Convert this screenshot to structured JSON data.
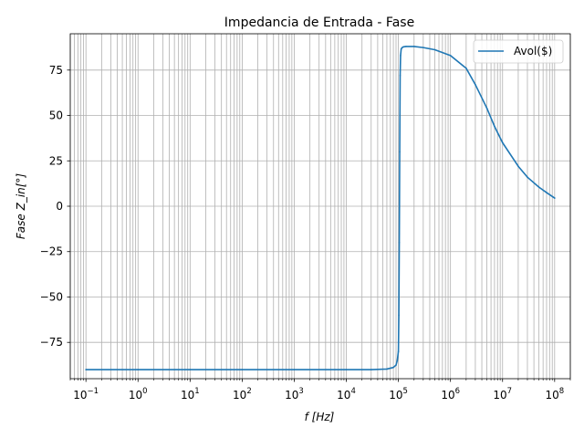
{
  "chart_data": {
    "type": "line",
    "title": "Impedancia de Entrada - Fase",
    "xlabel": "f   [Hz]",
    "ylabel": "Fase   Z_in[°]",
    "xscale": "log",
    "xlim": [
      0.05,
      200000000
    ],
    "ylim": [
      -95,
      95
    ],
    "xticks": [
      {
        "value": 0.1,
        "base": "10",
        "exp": "−1"
      },
      {
        "value": 1,
        "base": "10",
        "exp": "0"
      },
      {
        "value": 10,
        "base": "10",
        "exp": "1"
      },
      {
        "value": 100,
        "base": "10",
        "exp": "2"
      },
      {
        "value": 1000,
        "base": "10",
        "exp": "3"
      },
      {
        "value": 10000,
        "base": "10",
        "exp": "4"
      },
      {
        "value": 100000,
        "base": "10",
        "exp": "5"
      },
      {
        "value": 1000000,
        "base": "10",
        "exp": "6"
      },
      {
        "value": 10000000,
        "base": "10",
        "exp": "7"
      },
      {
        "value": 100000000,
        "base": "10",
        "exp": "8"
      }
    ],
    "yticks": [
      {
        "value": 75,
        "label": "75"
      },
      {
        "value": 50,
        "label": "50"
      },
      {
        "value": 25,
        "label": "25"
      },
      {
        "value": 0,
        "label": "0"
      },
      {
        "value": -25,
        "label": "−25"
      },
      {
        "value": -50,
        "label": "−50"
      },
      {
        "value": -75,
        "label": "−75"
      }
    ],
    "grid": true,
    "legend_position": "upper right",
    "series": [
      {
        "name": "Avol($)",
        "color": "#1f77b4",
        "x": [
          0.1,
          1,
          10,
          100,
          1000,
          10000,
          30000,
          60000,
          80000,
          90000,
          95000,
          100000,
          102000,
          104000,
          106000,
          108000,
          110000,
          113000,
          117000,
          125000,
          140000,
          200000,
          300000,
          500000,
          1000000,
          2000000,
          3000000,
          5000000,
          7000000,
          10000000,
          20000000,
          30000000,
          50000000,
          70000000,
          100000000
        ],
        "y": [
          -90,
          -90,
          -90,
          -90,
          -90,
          -90,
          -90,
          -89.7,
          -88.8,
          -87.5,
          -85,
          -80,
          -60,
          -20,
          30,
          72,
          83,
          86.5,
          87.3,
          87.8,
          88,
          88,
          87.4,
          86.2,
          83,
          76,
          67,
          54,
          44,
          35,
          22,
          16,
          10.5,
          7.5,
          4.5
        ]
      }
    ]
  }
}
